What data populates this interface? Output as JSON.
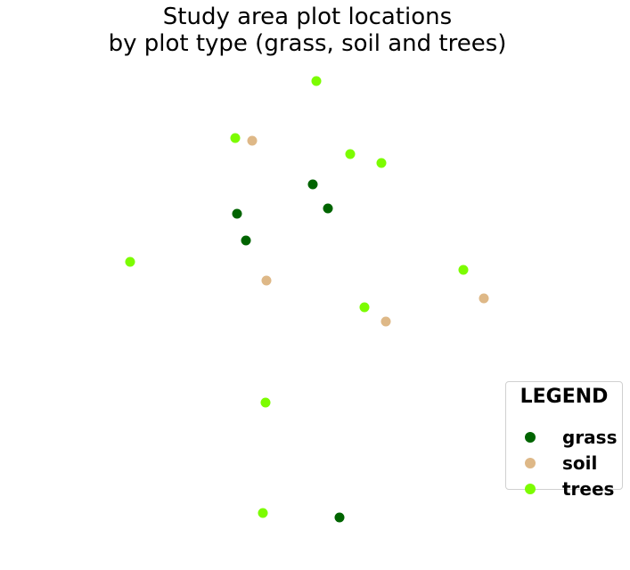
{
  "chart_data": {
    "type": "scatter",
    "title_lines": [
      "Study area plot locations",
      "by plot type (grass, soil and trees)"
    ],
    "xlabel": "",
    "ylabel": "",
    "axes_visible": false,
    "grid": false,
    "legend": {
      "title": "LEGEND",
      "position": "bottom-right",
      "entries": [
        {
          "label": "grass",
          "color": "#006400"
        },
        {
          "label": "soil",
          "color": "#deb887"
        },
        {
          "label": "trees",
          "color": "#7cfc00"
        }
      ]
    },
    "series": [
      {
        "name": "grass",
        "color": "#006400",
        "points": [
          [
            351,
            207
          ],
          [
            368,
            234
          ],
          [
            266,
            240
          ],
          [
            276,
            270
          ],
          [
            381,
            581
          ]
        ]
      },
      {
        "name": "soil",
        "color": "#deb887",
        "points": [
          [
            283,
            158
          ],
          [
            299,
            315
          ],
          [
            543,
            335
          ],
          [
            433,
            361
          ]
        ]
      },
      {
        "name": "trees",
        "color": "#7cfc00",
        "points": [
          [
            355,
            91
          ],
          [
            264,
            155
          ],
          [
            393,
            173
          ],
          [
            428,
            183
          ],
          [
            146,
            294
          ],
          [
            520,
            303
          ],
          [
            409,
            345
          ],
          [
            298,
            452
          ],
          [
            295,
            576
          ]
        ]
      }
    ]
  }
}
